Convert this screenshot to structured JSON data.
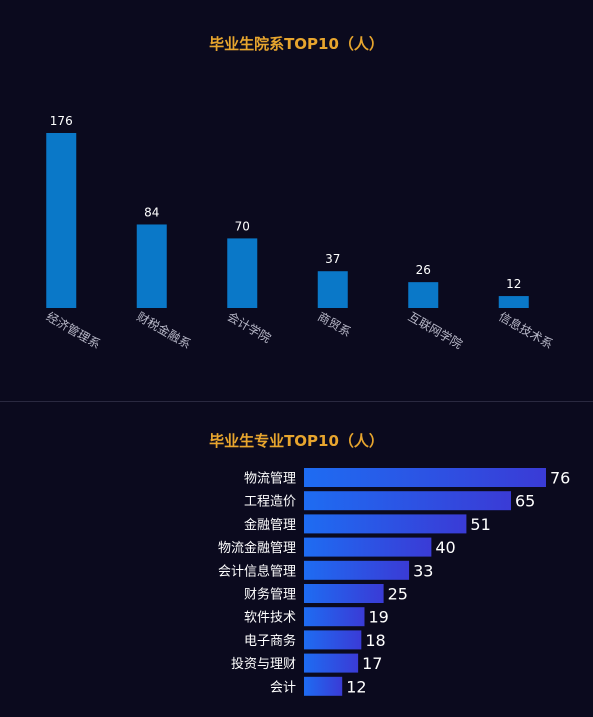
{
  "colors": {
    "background": "#0b0a1e",
    "title": "#e7a52e",
    "bar_top": "#0a78c8",
    "bar_gradient_start": "#1e6cf2",
    "bar_gradient_end": "#3a3bd6",
    "value_text": "#ffffff",
    "axis_label": "#b8b8c8"
  },
  "chart_data": [
    {
      "type": "bar",
      "title": "毕业生院系TOP10（人）",
      "orientation": "vertical",
      "categories": [
        "经济管理系",
        "财税金融系",
        "会计学院",
        "商贸系",
        "互联网学院",
        "信息技术系"
      ],
      "values": [
        176,
        84,
        70,
        37,
        26,
        12
      ],
      "ylim": [
        0,
        176
      ],
      "grid": false,
      "xlabel": "",
      "ylabel": ""
    },
    {
      "type": "bar",
      "title": "毕业生专业TOP10（人）",
      "orientation": "horizontal",
      "categories": [
        "物流管理",
        "工程造价",
        "金融管理",
        "物流金融管理",
        "会计信息管理",
        "财务管理",
        "软件技术",
        "电子商务",
        "投资与理财",
        "会计"
      ],
      "values": [
        76,
        65,
        51,
        40,
        33,
        25,
        19,
        18,
        17,
        12
      ],
      "xlim": [
        0,
        76
      ],
      "grid": false,
      "xlabel": "",
      "ylabel": ""
    }
  ]
}
